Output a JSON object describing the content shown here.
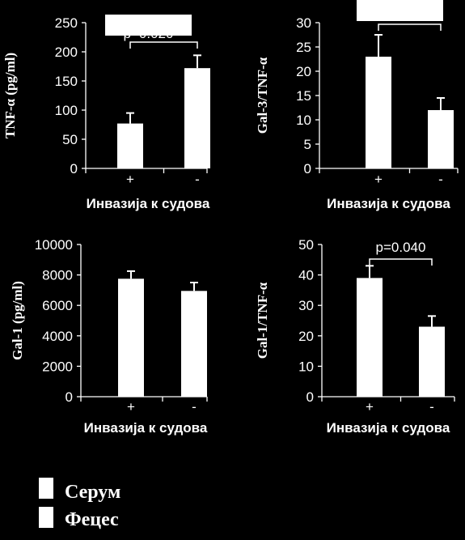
{
  "chart_data": [
    {
      "type": "bar",
      "ylabel": "TNF-α (pg/ml)",
      "xlabel": "Инвазија к судова",
      "categories": [
        "+",
        "-"
      ],
      "values": [
        77,
        172
      ],
      "errors": [
        18,
        22
      ],
      "ylim": [
        0,
        250
      ],
      "yticks": [
        0,
        50,
        100,
        150,
        200,
        250
      ],
      "annotation": "p=0.020",
      "annotation_obscured": true
    },
    {
      "type": "bar",
      "ylabel": "Gal-3/TNF-α",
      "xlabel": "Инвазија к судова",
      "categories": [
        "+",
        "-"
      ],
      "values": [
        23,
        12
      ],
      "errors": [
        4.5,
        2.5
      ],
      "ylim": [
        0,
        30
      ],
      "yticks": [
        0,
        5,
        10,
        15,
        20,
        25,
        30
      ],
      "annotation": "",
      "annotation_obscured": true
    },
    {
      "type": "bar",
      "ylabel": "Gal-1 (pg/ml)",
      "xlabel": "Инвазија к судова",
      "categories": [
        "+",
        "-"
      ],
      "values": [
        7750,
        6950
      ],
      "errors": [
        500,
        550
      ],
      "ylim": [
        0,
        10000
      ],
      "yticks": [
        0,
        2000,
        4000,
        6000,
        8000,
        10000
      ],
      "annotation": ""
    },
    {
      "type": "bar",
      "ylabel": "Gal-1/TNF-α",
      "xlabel": "Инвазија к судова",
      "categories": [
        "+",
        "-"
      ],
      "values": [
        39,
        23
      ],
      "errors": [
        4,
        3.5
      ],
      "ylim": [
        0,
        50
      ],
      "yticks": [
        0,
        10,
        20,
        30,
        40,
        50
      ],
      "annotation": "p=0.040"
    }
  ],
  "legend": {
    "placement": "bottom-left",
    "items": [
      {
        "label": "Серум",
        "color": "#ffffff"
      },
      {
        "label": "Фецес",
        "color": "#ffffff"
      }
    ]
  },
  "colors": {
    "background": "#000000",
    "bar": "#ffffff",
    "axis": "#ffffff"
  }
}
